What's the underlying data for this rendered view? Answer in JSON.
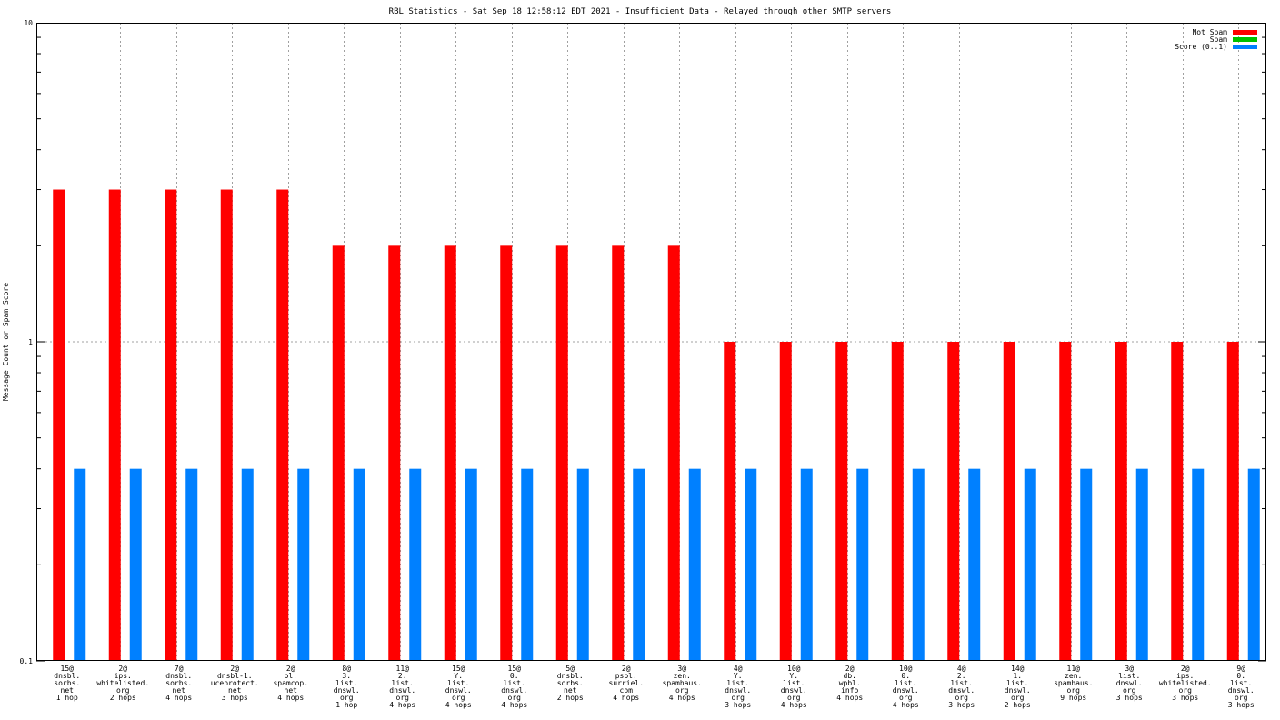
{
  "chart_data": {
    "type": "bar",
    "title": "RBL Statistics - Sat Sep 18 12:58:12 EDT 2021 - Insufficient Data - Relayed through other SMTP servers",
    "ylabel": "Message Count or Spam Score",
    "xlabel": "",
    "yscale": "log",
    "ylim": [
      0.1,
      10
    ],
    "yticks": [
      "0.1",
      "1",
      "10"
    ],
    "grid": true,
    "legend_position": "top-right",
    "categories": [
      [
        "15@",
        "dnsbl.",
        "sorbs.",
        "net",
        "1 hop"
      ],
      [
        "2@",
        "ips.",
        "whitelisted.",
        "org",
        "2 hops"
      ],
      [
        "7@",
        "dnsbl.",
        "sorbs.",
        "net",
        "4 hops"
      ],
      [
        "2@",
        "dnsbl-1.",
        "uceprotect.",
        "net",
        "3 hops"
      ],
      [
        "2@",
        "bl.",
        "spamcop.",
        "net",
        "4 hops"
      ],
      [
        "8@",
        "3.",
        "list.",
        "dnswl.",
        "org",
        "1 hop"
      ],
      [
        "11@",
        "2.",
        "list.",
        "dnswl.",
        "org",
        "4 hops"
      ],
      [
        "15@",
        "Y.",
        "list.",
        "dnswl.",
        "org",
        "4 hops"
      ],
      [
        "15@",
        "0.",
        "list.",
        "dnswl.",
        "org",
        "4 hops"
      ],
      [
        "5@",
        "dnsbl.",
        "sorbs.",
        "net",
        "2 hops"
      ],
      [
        "2@",
        "psbl.",
        "surriel.",
        "com",
        "4 hops"
      ],
      [
        "3@",
        "zen.",
        "spamhaus.",
        "org",
        "4 hops"
      ],
      [
        "4@",
        "Y.",
        "list.",
        "dnswl.",
        "org",
        "3 hops"
      ],
      [
        "10@",
        "Y.",
        "list.",
        "dnswl.",
        "org",
        "4 hops"
      ],
      [
        "2@",
        "db.",
        "wpbl.",
        "info",
        "4 hops"
      ],
      [
        "10@",
        "0.",
        "list.",
        "dnswl.",
        "org",
        "4 hops"
      ],
      [
        "4@",
        "2.",
        "list.",
        "dnswl.",
        "org",
        "3 hops"
      ],
      [
        "14@",
        "1.",
        "list.",
        "dnswl.",
        "org",
        "2 hops"
      ],
      [
        "11@",
        "zen.",
        "spamhaus.",
        "org",
        "9 hops"
      ],
      [
        "3@",
        "list.",
        "dnswl.",
        "org",
        "3 hops"
      ],
      [
        "2@",
        "ips.",
        "whitelisted.",
        "org",
        "3 hops"
      ],
      [
        "9@",
        "0.",
        "list.",
        "dnswl.",
        "org",
        "3 hops"
      ]
    ],
    "series": [
      {
        "name": "Not Spam",
        "color": "#ff0000",
        "values": [
          3,
          3,
          3,
          3,
          3,
          2,
          2,
          2,
          2,
          2,
          2,
          2,
          1,
          1,
          1,
          1,
          1,
          1,
          1,
          1,
          1,
          1
        ]
      },
      {
        "name": "Spam",
        "color": "#00c000",
        "values": [
          0,
          0,
          0,
          0,
          0,
          0,
          0,
          0,
          0,
          0,
          0,
          0,
          0,
          0,
          0,
          0,
          0,
          0,
          0,
          0,
          0,
          0
        ]
      },
      {
        "name": "Score (0..1)",
        "color": "#0080ff",
        "values": [
          0.4,
          0.4,
          0.4,
          0.4,
          0.4,
          0.4,
          0.4,
          0.4,
          0.4,
          0.4,
          0.4,
          0.4,
          0.4,
          0.4,
          0.4,
          0.4,
          0.4,
          0.4,
          0.4,
          0.4,
          0.4,
          0.4
        ]
      }
    ]
  }
}
